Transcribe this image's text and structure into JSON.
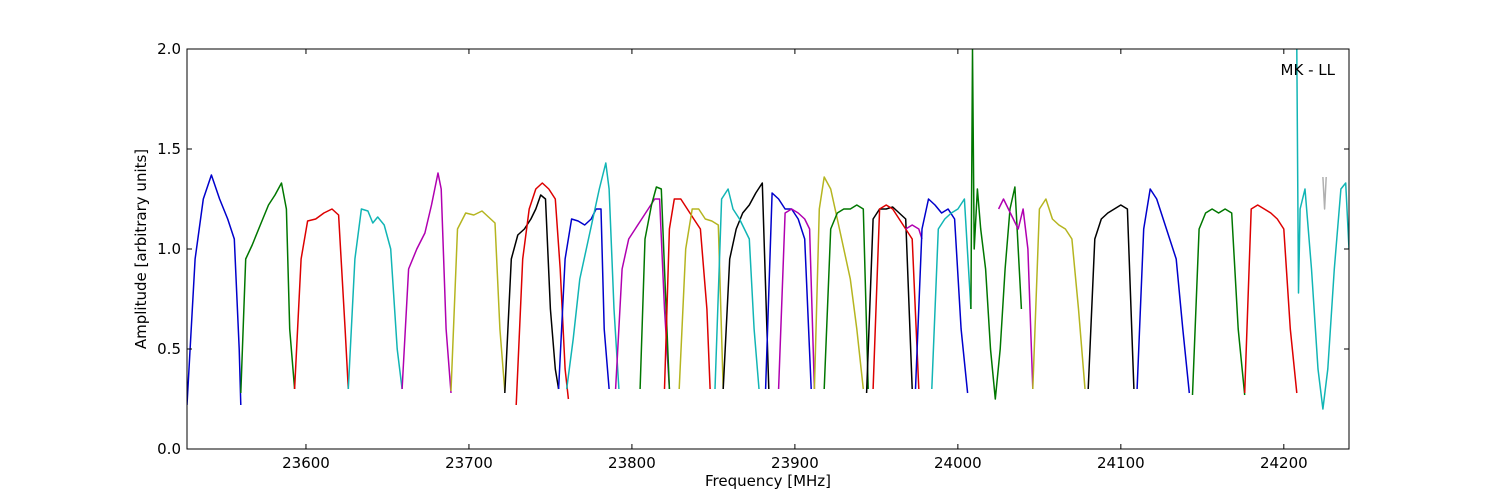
{
  "chart_data": {
    "type": "line",
    "title": "",
    "annotation": "MK - LL",
    "xlabel": "Frequency [MHz]",
    "ylabel": "Amplitude [arbitrary units]",
    "xlim": [
      23527,
      24240
    ],
    "ylim": [
      0.0,
      2.0
    ],
    "xticks": [
      23600,
      23700,
      23800,
      23900,
      24000,
      24100,
      24200
    ],
    "yticks": [
      0.0,
      0.5,
      1.0,
      1.5,
      2.0
    ],
    "xtick_labels": [
      "23600",
      "23700",
      "23800",
      "23900",
      "24000",
      "24100",
      "24200"
    ],
    "ytick_labels": [
      "0.0",
      "0.5",
      "1.0",
      "1.5",
      "2.0"
    ],
    "grid": false,
    "legend": "none",
    "series": [
      {
        "color": "#0000cc",
        "x": [
          23527,
          23532,
          23537,
          23542,
          23547,
          23552,
          23556,
          23559,
          23560
        ],
        "y": [
          0.22,
          0.95,
          1.25,
          1.37,
          1.25,
          1.15,
          1.05,
          0.5,
          0.22
        ]
      },
      {
        "color": "#007700",
        "x": [
          23560,
          23563,
          23567,
          23572,
          23577,
          23581,
          23585,
          23588,
          23590,
          23593
        ],
        "y": [
          0.28,
          0.95,
          1.02,
          1.12,
          1.22,
          1.27,
          1.33,
          1.2,
          0.6,
          0.3
        ]
      },
      {
        "color": "#dd0000",
        "x": [
          23593,
          23597,
          23601,
          23606,
          23611,
          23616,
          23620,
          23624,
          23626
        ],
        "y": [
          0.3,
          0.95,
          1.14,
          1.15,
          1.18,
          1.2,
          1.17,
          0.6,
          0.3
        ]
      },
      {
        "color": "#11b5b5",
        "x": [
          23626,
          23630,
          23634,
          23638,
          23641,
          23644,
          23648,
          23652,
          23656,
          23659
        ],
        "y": [
          0.3,
          0.95,
          1.2,
          1.19,
          1.13,
          1.16,
          1.12,
          1.0,
          0.5,
          0.3
        ]
      },
      {
        "color": "#b000b0",
        "x": [
          23659,
          23663,
          23668,
          23673,
          23677,
          23681,
          23683,
          23686,
          23689
        ],
        "y": [
          0.3,
          0.9,
          1.0,
          1.08,
          1.22,
          1.38,
          1.3,
          0.6,
          0.28
        ]
      },
      {
        "color": "#b5b520",
        "x": [
          23689,
          23693,
          23698,
          23703,
          23708,
          23712,
          23716,
          23719,
          23722
        ],
        "y": [
          0.29,
          1.1,
          1.18,
          1.17,
          1.19,
          1.16,
          1.13,
          0.6,
          0.29
        ]
      },
      {
        "color": "#000000",
        "x": [
          23722,
          23726,
          23730,
          23734,
          23738,
          23741,
          23744,
          23747,
          23750,
          23753,
          23755
        ],
        "y": [
          0.28,
          0.95,
          1.07,
          1.1,
          1.15,
          1.2,
          1.27,
          1.25,
          0.7,
          0.4,
          0.3
        ]
      },
      {
        "color": "#dd0000",
        "x": [
          23729,
          23733,
          23737,
          23741,
          23745,
          23749,
          23753,
          23756,
          23759,
          23761
        ],
        "y": [
          0.22,
          0.95,
          1.2,
          1.3,
          1.33,
          1.3,
          1.25,
          0.9,
          0.4,
          0.25
        ]
      },
      {
        "color": "#0000cc",
        "x": [
          23755,
          23759,
          23763,
          23767,
          23771,
          23775,
          23778,
          23781,
          23783,
          23786
        ],
        "y": [
          0.3,
          0.95,
          1.15,
          1.14,
          1.12,
          1.15,
          1.2,
          1.2,
          0.6,
          0.3
        ]
      },
      {
        "color": "#11b5b5",
        "x": [
          23760,
          23764,
          23768,
          23772,
          23776,
          23780,
          23784,
          23786,
          23789,
          23792
        ],
        "y": [
          0.3,
          0.55,
          0.85,
          1.0,
          1.15,
          1.3,
          1.43,
          1.3,
          0.7,
          0.3
        ]
      },
      {
        "color": "#b000b0",
        "x": [
          23790,
          23794,
          23798,
          23802,
          23806,
          23810,
          23814,
          23817,
          23820,
          23823
        ],
        "y": [
          0.3,
          0.9,
          1.05,
          1.1,
          1.15,
          1.2,
          1.25,
          1.25,
          0.7,
          0.3
        ]
      },
      {
        "color": "#007700",
        "x": [
          23805,
          23808,
          23812,
          23815,
          23818,
          23820,
          23823
        ],
        "y": [
          0.3,
          1.05,
          1.22,
          1.31,
          1.3,
          0.9,
          0.3
        ]
      },
      {
        "color": "#dd0000",
        "x": [
          23820,
          23823,
          23826,
          23830,
          23834,
          23838,
          23842,
          23846,
          23848
        ],
        "y": [
          0.3,
          1.1,
          1.25,
          1.25,
          1.2,
          1.15,
          1.1,
          0.7,
          0.3
        ]
      },
      {
        "color": "#b5b520",
        "x": [
          23829,
          23833,
          23837,
          23841,
          23845,
          23849,
          23853,
          23856
        ],
        "y": [
          0.3,
          1.0,
          1.2,
          1.2,
          1.15,
          1.14,
          1.12,
          0.3
        ]
      },
      {
        "color": "#000000",
        "x": [
          23856,
          23860,
          23864,
          23868,
          23872,
          23876,
          23880,
          23884
        ],
        "y": [
          0.3,
          0.95,
          1.1,
          1.18,
          1.22,
          1.28,
          1.33,
          0.3
        ]
      },
      {
        "color": "#11b5b5",
        "x": [
          23851,
          23855,
          23859,
          23862,
          23866,
          23869,
          23872,
          23875,
          23878
        ],
        "y": [
          0.3,
          1.25,
          1.3,
          1.2,
          1.15,
          1.1,
          1.05,
          0.6,
          0.3
        ]
      },
      {
        "color": "#0000cc",
        "x": [
          23882,
          23886,
          23890,
          23894,
          23898,
          23902,
          23906,
          23910
        ],
        "y": [
          0.3,
          1.28,
          1.25,
          1.2,
          1.2,
          1.15,
          1.05,
          0.3
        ]
      },
      {
        "color": "#b000b0",
        "x": [
          23890,
          23894,
          23898,
          23902,
          23906,
          23909,
          23912
        ],
        "y": [
          0.3,
          1.18,
          1.2,
          1.18,
          1.15,
          1.1,
          0.3
        ]
      },
      {
        "color": "#b5b520",
        "x": [
          23912,
          23915,
          23918,
          23922,
          23926,
          23930,
          23934,
          23938,
          23942
        ],
        "y": [
          0.3,
          1.2,
          1.36,
          1.3,
          1.15,
          1.0,
          0.85,
          0.6,
          0.3
        ]
      },
      {
        "color": "#007700",
        "x": [
          23918,
          23922,
          23926,
          23930,
          23934,
          23938,
          23942,
          23945
        ],
        "y": [
          0.3,
          1.1,
          1.18,
          1.2,
          1.2,
          1.22,
          1.2,
          0.3
        ]
      },
      {
        "color": "#000000",
        "x": [
          23944,
          23948,
          23952,
          23956,
          23960,
          23964,
          23968,
          23972
        ],
        "y": [
          0.28,
          1.15,
          1.2,
          1.2,
          1.21,
          1.18,
          1.15,
          0.3
        ]
      },
      {
        "color": "#dd0000",
        "x": [
          23948,
          23952,
          23956,
          23960,
          23964,
          23968,
          23972,
          23976
        ],
        "y": [
          0.3,
          1.2,
          1.22,
          1.2,
          1.15,
          1.1,
          1.05,
          0.3
        ]
      },
      {
        "color": "#b000b0",
        "x": [
          23968,
          23972,
          23976,
          23978
        ],
        "y": [
          1.1,
          1.12,
          1.1,
          1.05
        ]
      },
      {
        "color": "#0000cc",
        "x": [
          23974,
          23978,
          23982,
          23986,
          23990,
          23994,
          23998,
          24002,
          24006
        ],
        "y": [
          0.3,
          1.1,
          1.25,
          1.22,
          1.18,
          1.2,
          1.15,
          0.6,
          0.28
        ]
      },
      {
        "color": "#11b5b5",
        "x": [
          23984,
          23988,
          23992,
          23996,
          24000,
          24004,
          24008
        ],
        "y": [
          0.3,
          1.1,
          1.15,
          1.18,
          1.2,
          1.25,
          0.7
        ]
      },
      {
        "color": "#007700",
        "x": [
          24008,
          24009,
          24010,
          24012,
          24014,
          24017,
          24020,
          24023,
          24026,
          24029,
          24032,
          24035,
          24037,
          24039
        ],
        "y": [
          0.7,
          2.0,
          1.0,
          1.3,
          1.1,
          0.9,
          0.5,
          0.25,
          0.5,
          0.9,
          1.2,
          1.31,
          1.0,
          0.7
        ]
      },
      {
        "color": "#b000b0",
        "x": [
          24025,
          24028,
          24031,
          24034,
          24037,
          24040,
          24043,
          24046
        ],
        "y": [
          1.2,
          1.25,
          1.2,
          1.15,
          1.1,
          1.2,
          1.0,
          0.3
        ]
      },
      {
        "color": "#b5b520",
        "x": [
          24046,
          24050,
          24054,
          24058,
          24062,
          24066,
          24070,
          24074,
          24078
        ],
        "y": [
          0.3,
          1.2,
          1.25,
          1.15,
          1.12,
          1.1,
          1.05,
          0.7,
          0.3
        ]
      },
      {
        "color": "#000000",
        "x": [
          24080,
          24084,
          24088,
          24092,
          24096,
          24100,
          24104,
          24108
        ],
        "y": [
          0.3,
          1.05,
          1.15,
          1.18,
          1.2,
          1.22,
          1.2,
          0.3
        ]
      },
      {
        "color": "#0000cc",
        "x": [
          24110,
          24114,
          24118,
          24122,
          24126,
          24130,
          24134,
          24138,
          24142
        ],
        "y": [
          0.3,
          1.1,
          1.3,
          1.25,
          1.15,
          1.05,
          0.95,
          0.6,
          0.28
        ]
      },
      {
        "color": "#007700",
        "x": [
          24144,
          24148,
          24152,
          24156,
          24160,
          24164,
          24168,
          24172,
          24176
        ],
        "y": [
          0.27,
          1.1,
          1.18,
          1.2,
          1.18,
          1.2,
          1.18,
          0.6,
          0.27
        ]
      },
      {
        "color": "#dd0000",
        "x": [
          24176,
          24180,
          24184,
          24188,
          24192,
          24196,
          24200,
          24204,
          24208
        ],
        "y": [
          0.28,
          1.2,
          1.22,
          1.2,
          1.18,
          1.15,
          1.1,
          0.6,
          0.28
        ]
      },
      {
        "color": "#11b5b5",
        "x": [
          24208,
          24209,
          24210,
          24213,
          24217,
          24221,
          24224,
          24227,
          24231,
          24235,
          24238,
          24240
        ],
        "y": [
          2.0,
          0.78,
          1.2,
          1.3,
          0.9,
          0.4,
          0.2,
          0.4,
          0.9,
          1.3,
          1.33,
          1.0
        ]
      },
      {
        "color": "#b0b0b0",
        "x": [
          24224,
          24225,
          24226
        ],
        "y": [
          1.36,
          1.2,
          1.36
        ]
      }
    ]
  }
}
